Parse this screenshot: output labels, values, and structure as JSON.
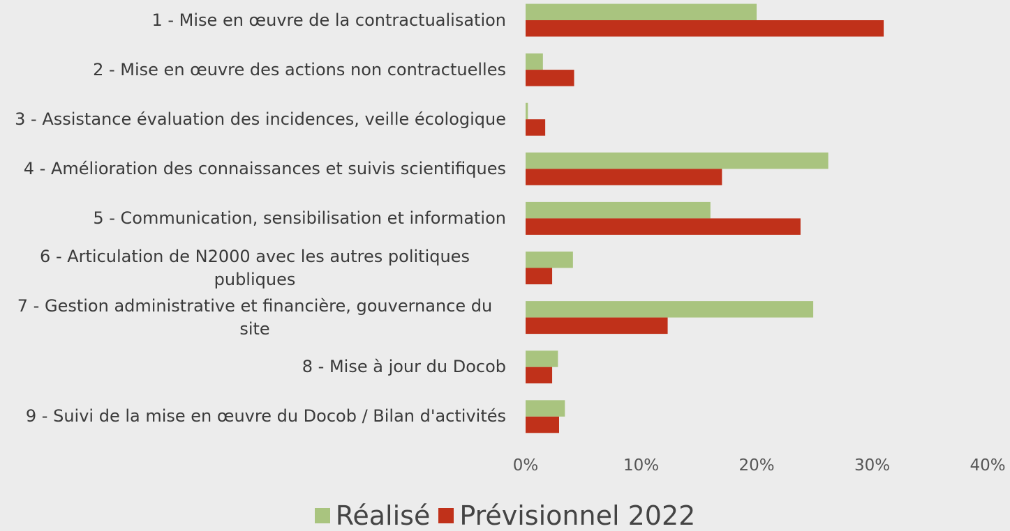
{
  "chart_data": {
    "type": "barh",
    "categories": [
      "1 - Mise en œuvre de la contractualisation",
      "2 - Mise en œuvre des actions non contractuelles",
      "3 - Assistance évaluation des incidences, veille écologique",
      "4 - Amélioration des connaissances et suivis scientifiques",
      "5 - Communication, sensibilisation et information",
      "6 - Articulation de N2000 avec les autres politiques publiques",
      "7 - Gestion administrative et financière, gouvernance du site",
      "8 - Mise à jour du Docob",
      "9 - Suivi de la mise en œuvre du Docob / Bilan d'activités"
    ],
    "series": [
      {
        "name": "Réalisé",
        "color": "#a9c47f",
        "values": [
          20.0,
          1.5,
          0.2,
          26.2,
          16.0,
          4.1,
          24.9,
          2.8,
          3.4
        ]
      },
      {
        "name": "Prévisionnel 2022",
        "color": "#c0311a",
        "values": [
          31.0,
          4.2,
          1.7,
          17.0,
          23.8,
          2.3,
          12.3,
          2.3,
          2.9
        ]
      }
    ],
    "xlim": [
      0,
      40
    ],
    "xticks": [
      {
        "value": 0,
        "label": "0%"
      },
      {
        "value": 10,
        "label": "10%"
      },
      {
        "value": 20,
        "label": "20%"
      },
      {
        "value": 30,
        "label": "30%"
      },
      {
        "value": 40,
        "label": "40%"
      }
    ],
    "legend": "bottom"
  }
}
